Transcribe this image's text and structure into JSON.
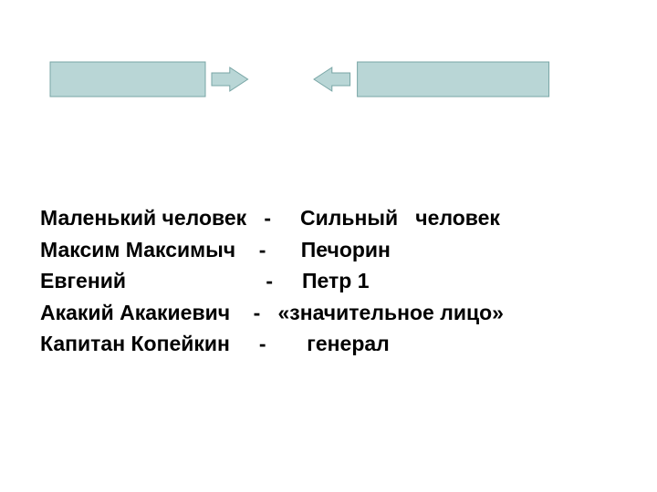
{
  "diagram": {
    "background_color": "#ffffff",
    "arrows": {
      "fill_color": "#b9d6d6",
      "stroke_color": "#78a5a5",
      "stroke_width": 1,
      "left_arrow": {
        "body_width": 170,
        "body_height": 38,
        "head_width": 36,
        "head_height": 26,
        "head_shaft_height": 14
      },
      "right_arrow": {
        "body_width": 210,
        "body_height": 38,
        "head_width": 36,
        "head_height": 26,
        "head_shaft_height": 14
      }
    },
    "text": {
      "font_size": 23,
      "font_weight": "bold",
      "color": "#000000",
      "lines": [
        "Маленький человек   -     Сильный   человек",
        "Максим Максимыч    -      Печорин",
        "Евгений                        -     Петр 1",
        "Акакий Акакиевич    -   «значительное лицо»",
        "Капитан Копейкин     -       генерал"
      ]
    }
  }
}
